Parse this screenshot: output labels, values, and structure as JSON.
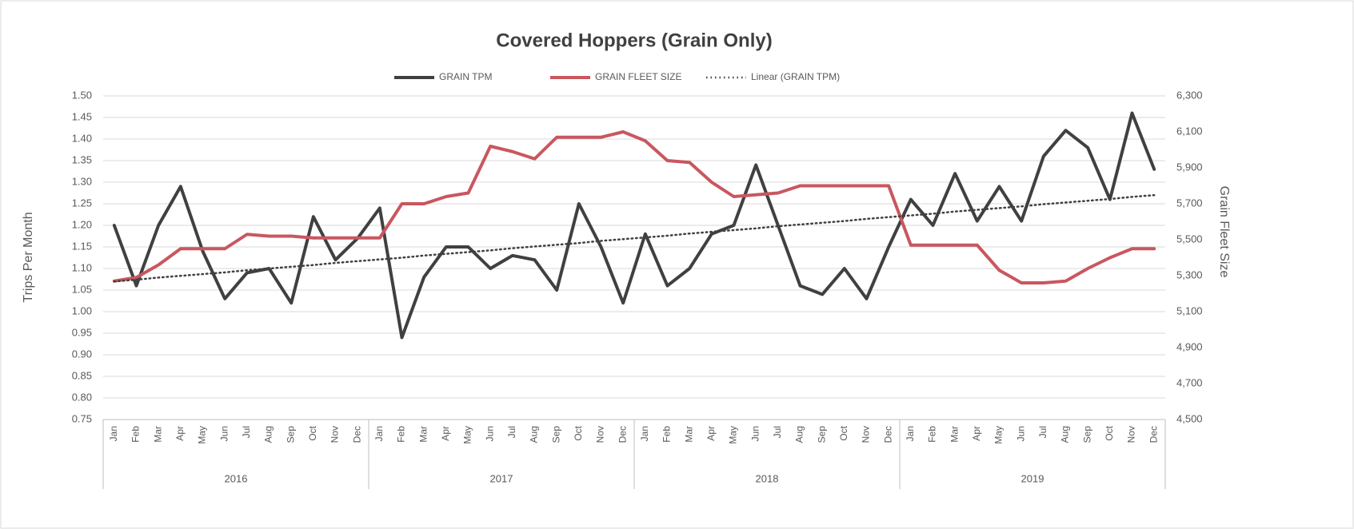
{
  "chart_data": {
    "type": "line",
    "title": "Covered Hoppers (Grain Only)",
    "y_label": "Trips Per Month",
    "y2_label": "Grain Fleet Size",
    "categories": [
      "Jan",
      "Feb",
      "Mar",
      "Apr",
      "May",
      "Jun",
      "Jul",
      "Aug",
      "Sep",
      "Oct",
      "Nov",
      "Dec",
      "Jan",
      "Feb",
      "Mar",
      "Apr",
      "May",
      "Jun",
      "Jul",
      "Aug",
      "Sep",
      "Oct",
      "Nov",
      "Dec",
      "Jan",
      "Feb",
      "Mar",
      "Apr",
      "May",
      "Jun",
      "Jul",
      "Aug",
      "Sep",
      "Oct",
      "Nov",
      "Dec",
      "Jan",
      "Feb",
      "Mar",
      "Apr",
      "May",
      "Jun",
      "Jul",
      "Aug",
      "Sep",
      "Oct",
      "Nov",
      "Dec"
    ],
    "x_groups": [
      "2016",
      "2017",
      "2018",
      "2019"
    ],
    "series": [
      {
        "name": "GRAIN TPM",
        "color": "#404040",
        "style": "solid",
        "values": [
          1.2,
          1.06,
          1.2,
          1.29,
          1.14,
          1.03,
          1.09,
          1.1,
          1.02,
          1.22,
          1.12,
          1.17,
          1.24,
          0.94,
          1.08,
          1.15,
          1.15,
          1.1,
          1.13,
          1.12,
          1.05,
          1.25,
          1.15,
          1.02,
          1.18,
          1.06,
          1.1,
          1.18,
          1.2,
          1.34,
          1.2,
          1.06,
          1.04,
          1.1,
          1.03,
          1.15,
          1.26,
          1.2,
          1.32,
          1.21,
          1.29,
          1.21,
          1.36,
          1.42,
          1.38,
          1.26,
          1.46,
          1.33
        ]
      },
      {
        "name": "GRAIN FLEET SIZE",
        "color": "#c9575f",
        "style": "solid",
        "axis": "y2",
        "values": [
          5270,
          5290,
          5360,
          5450,
          5450,
          5450,
          5530,
          5520,
          5520,
          5510,
          5510,
          5510,
          5510,
          5700,
          5700,
          5740,
          5760,
          6020,
          5990,
          5950,
          6070,
          6070,
          6070,
          6100,
          6050,
          5940,
          5930,
          5820,
          5740,
          5750,
          5760,
          5800,
          5800,
          5800,
          5800,
          5800,
          5470,
          5470,
          5470,
          5470,
          5330,
          5260,
          5260,
          5270,
          5340,
          5400,
          5450,
          5450
        ]
      },
      {
        "name": "Linear (GRAIN TPM)",
        "color": "#404040",
        "style": "dotted",
        "values": [
          1.07,
          1.074,
          1.079,
          1.083,
          1.087,
          1.091,
          1.096,
          1.1,
          1.104,
          1.108,
          1.113,
          1.117,
          1.121,
          1.125,
          1.13,
          1.134,
          1.138,
          1.142,
          1.147,
          1.151,
          1.155,
          1.159,
          1.164,
          1.168,
          1.172,
          1.176,
          1.181,
          1.185,
          1.189,
          1.193,
          1.198,
          1.202,
          1.206,
          1.21,
          1.215,
          1.219,
          1.223,
          1.227,
          1.232,
          1.236,
          1.24,
          1.244,
          1.249,
          1.253,
          1.257,
          1.261,
          1.266,
          1.27
        ]
      }
    ],
    "ylim": [
      0.75,
      1.5
    ],
    "yticks": [
      {
        "value": 0.75,
        "label": "0.75"
      },
      {
        "value": 0.8,
        "label": "0.80"
      },
      {
        "value": 0.85,
        "label": "0.85"
      },
      {
        "value": 0.9,
        "label": "0.90"
      },
      {
        "value": 0.95,
        "label": "0.95"
      },
      {
        "value": 1.0,
        "label": "1.00"
      },
      {
        "value": 1.05,
        "label": "1.05"
      },
      {
        "value": 1.1,
        "label": "1.10"
      },
      {
        "value": 1.15,
        "label": "1.15"
      },
      {
        "value": 1.2,
        "label": "1.20"
      },
      {
        "value": 1.25,
        "label": "1.25"
      },
      {
        "value": 1.3,
        "label": "1.30"
      },
      {
        "value": 1.35,
        "label": "1.35"
      },
      {
        "value": 1.4,
        "label": "1.40"
      },
      {
        "value": 1.45,
        "label": "1.45"
      },
      {
        "value": 1.5,
        "label": "1.50"
      }
    ],
    "y2lim": [
      4500,
      6300
    ],
    "y2ticks": [
      {
        "value": 4500,
        "label": "4,500"
      },
      {
        "value": 4700,
        "label": "4,700"
      },
      {
        "value": 4900,
        "label": "4,900"
      },
      {
        "value": 5100,
        "label": "5,100"
      },
      {
        "value": 5300,
        "label": "5,300"
      },
      {
        "value": 5500,
        "label": "5,500"
      },
      {
        "value": 5700,
        "label": "5,700"
      },
      {
        "value": 5900,
        "label": "5,900"
      },
      {
        "value": 6100,
        "label": "6,100"
      },
      {
        "value": 6300,
        "label": "6,300"
      }
    ],
    "grid": true,
    "legend": "top"
  }
}
